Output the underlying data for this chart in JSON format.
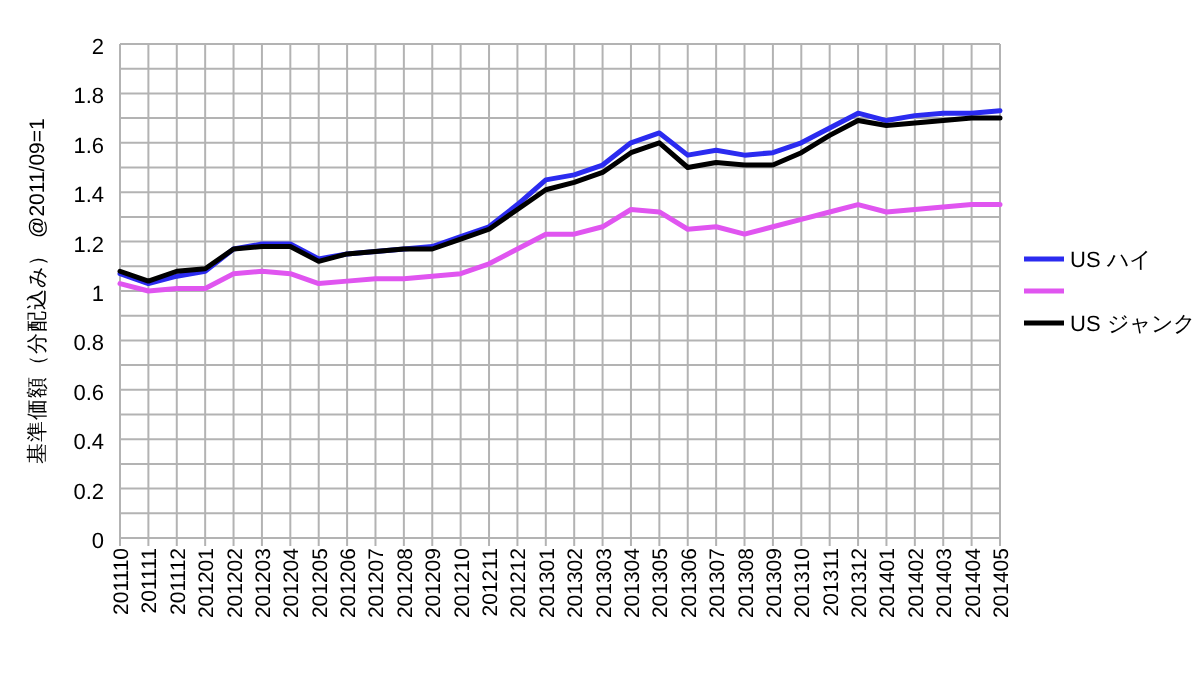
{
  "chart_data": {
    "type": "line",
    "ylabel": "基準価額（分配込み） @2011/09=1",
    "categories": [
      "201110",
      "201111",
      "201112",
      "201201",
      "201202",
      "201203",
      "201204",
      "201205",
      "201206",
      "201207",
      "201208",
      "201209",
      "201210",
      "201211",
      "201212",
      "201301",
      "201302",
      "201303",
      "201304",
      "201305",
      "201306",
      "201307",
      "201308",
      "201309",
      "201310",
      "201311",
      "201312",
      "201401",
      "201402",
      "201403",
      "201404",
      "201405"
    ],
    "series": [
      {
        "name": "US ハイ",
        "color": "#2b2bf0",
        "values": [
          1.07,
          1.03,
          1.06,
          1.08,
          1.17,
          1.19,
          1.19,
          1.13,
          1.15,
          1.16,
          1.17,
          1.18,
          1.22,
          1.26,
          1.35,
          1.45,
          1.47,
          1.51,
          1.6,
          1.64,
          1.55,
          1.57,
          1.55,
          1.56,
          1.6,
          1.66,
          1.72,
          1.69,
          1.71,
          1.72,
          1.72,
          1.73
        ]
      },
      {
        "color": "#e055f0",
        "values": [
          1.03,
          1.0,
          1.01,
          1.01,
          1.07,
          1.08,
          1.07,
          1.03,
          1.04,
          1.05,
          1.05,
          1.06,
          1.07,
          1.11,
          1.17,
          1.23,
          1.23,
          1.26,
          1.33,
          1.32,
          1.25,
          1.26,
          1.23,
          1.26,
          1.29,
          1.32,
          1.35,
          1.32,
          1.33,
          1.34,
          1.35,
          1.35
        ]
      },
      {
        "name": "US ジャンク",
        "color": "#000000",
        "values": [
          1.08,
          1.04,
          1.08,
          1.09,
          1.17,
          1.18,
          1.18,
          1.12,
          1.15,
          1.16,
          1.17,
          1.17,
          1.21,
          1.25,
          1.33,
          1.41,
          1.44,
          1.48,
          1.56,
          1.6,
          1.5,
          1.52,
          1.51,
          1.51,
          1.56,
          1.63,
          1.69,
          1.67,
          1.68,
          1.69,
          1.7,
          1.7
        ]
      }
    ],
    "ylim": [
      0,
      2
    ],
    "yticks": [
      0,
      {
        "value": 0.1,
        "label": null
      },
      0.2,
      {
        "value": 0.3,
        "label": null
      },
      0.4,
      {
        "value": 0.5,
        "label": null
      },
      0.6,
      {
        "value": 0.7,
        "label": null
      },
      0.8,
      {
        "value": 0.9,
        "label": null
      },
      1,
      {
        "value": 1.1,
        "label": null
      },
      1.2,
      {
        "value": 1.3,
        "label": null
      },
      1.4,
      {
        "value": 1.5,
        "label": null
      },
      1.6,
      {
        "value": 1.7,
        "label": null
      },
      1.8,
      {
        "value": 1.9,
        "label": null
      },
      2
    ],
    "grid": true,
    "legend": "right",
    "marker": "none",
    "line_style": "solid"
  }
}
